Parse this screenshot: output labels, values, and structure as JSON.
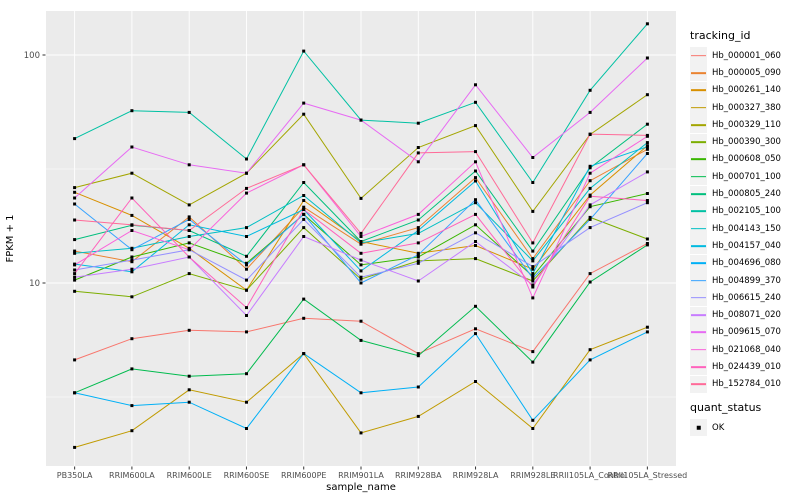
{
  "figure": {
    "panel_bg": "#EBEBEB",
    "grid_color": "#FFFFFF",
    "tick_text_color": "#4D4D4D",
    "tick_mark_color": "#333333",
    "point_color": "#000000"
  },
  "legend": {
    "tracking_title": "tracking_id",
    "quant_title": "quant_status",
    "quant_items": [
      {
        "label": "OK"
      }
    ]
  },
  "chart_data": {
    "type": "line",
    "title": "",
    "xlabel": "sample_name",
    "ylabel": "FPKM + 1",
    "y_scale": "log10",
    "ylim": [
      1.5,
      165
    ],
    "grid": true,
    "legend_position": "right",
    "point_shape": "black-square",
    "y_ticks": [
      {
        "label": "10",
        "value": 10
      },
      {
        "label": "100",
        "value": 100
      }
    ],
    "y_minor": [
      3.162,
      31.62
    ],
    "categories": [
      "PB350LA",
      "RRIM600LA",
      "RRIM600LE",
      "RRIM600SE",
      "RRIM600PE",
      "RRIM901LA",
      "RRIM928BA",
      "RRIM928LA",
      "RRIM928LE",
      "RRII105LA_Control",
      "RRII105LA_Stressed"
    ],
    "series": [
      {
        "name": "Hb_000001_060",
        "color": "#F8766D",
        "values": [
          4.6,
          5.7,
          6.2,
          6.1,
          7.0,
          6.8,
          4.9,
          6.3,
          5.0,
          11.0,
          14.9
        ]
      },
      {
        "name": "Hb_000005_090",
        "color": "#EA8331",
        "values": [
          13.8,
          12.4,
          19.5,
          11.5,
          21.5,
          14.8,
          17.5,
          29.0,
          12.8,
          28.1,
          38.6
        ]
      },
      {
        "name": "Hb_000261_140",
        "color": "#D89000",
        "values": [
          25.0,
          19.8,
          14.2,
          9.3,
          23.0,
          15.2,
          13.5,
          14.6,
          11.5,
          24.3,
          40.0
        ]
      },
      {
        "name": "Hb_000327_380",
        "color": "#C09B00",
        "values": [
          1.9,
          2.25,
          3.4,
          3.0,
          4.9,
          2.2,
          2.6,
          3.7,
          2.3,
          5.1,
          6.4
        ]
      },
      {
        "name": "Hb_000329_110",
        "color": "#A3A500",
        "values": [
          26.2,
          30.3,
          22.0,
          30.3,
          55.0,
          23.5,
          39.3,
          49.0,
          20.6,
          44.8,
          67.0
        ]
      },
      {
        "name": "Hb_000390_300",
        "color": "#7CAE00",
        "values": [
          9.2,
          8.7,
          11.0,
          9.3,
          17.5,
          10.4,
          12.5,
          12.8,
          10.2,
          19.4,
          15.6
        ]
      },
      {
        "name": "Hb_000608_050",
        "color": "#39B600",
        "values": [
          10.3,
          13.0,
          15.0,
          12.2,
          20.0,
          12.0,
          13.0,
          18.0,
          10.7,
          21.6,
          24.7
        ]
      },
      {
        "name": "Hb_000701_100",
        "color": "#00BB4E",
        "values": [
          3.3,
          4.2,
          3.9,
          4.0,
          8.5,
          5.6,
          4.8,
          7.9,
          4.5,
          10.1,
          14.7
        ]
      },
      {
        "name": "Hb_000805_240",
        "color": "#00BF7D",
        "values": [
          15.5,
          17.9,
          17.0,
          13.1,
          27.6,
          15.2,
          18.9,
          31.0,
          13.8,
          32.0,
          49.7
        ]
      },
      {
        "name": "Hb_002105_100",
        "color": "#00C1A3",
        "values": [
          43.0,
          57.0,
          56.0,
          35.0,
          104.0,
          51.8,
          50.2,
          62.0,
          27.6,
          70.0,
          137.0
        ]
      },
      {
        "name": "Hb_004143_150",
        "color": "#00BFC4",
        "values": [
          13.5,
          14.2,
          16.0,
          17.5,
          24.2,
          15.0,
          16.5,
          22.5,
          12.5,
          26.0,
          41.3
        ]
      },
      {
        "name": "Hb_004157_040",
        "color": "#00BAE0",
        "values": [
          12.1,
          11.2,
          18.0,
          16.0,
          21.0,
          11.3,
          17.0,
          28.0,
          11.0,
          32.5,
          39.6
        ]
      },
      {
        "name": "Hb_004696_080",
        "color": "#00B0F6",
        "values": [
          3.3,
          2.9,
          3.0,
          2.3,
          4.9,
          3.3,
          3.5,
          6.0,
          2.5,
          4.6,
          6.1
        ]
      },
      {
        "name": "Hb_004899_370",
        "color": "#35A2FF",
        "values": [
          22.2,
          14.0,
          19.0,
          12.0,
          20.0,
          10.0,
          13.3,
          23.2,
          10.5,
          19.0,
          37.0
        ]
      },
      {
        "name": "Hb_006615_240",
        "color": "#9590FF",
        "values": [
          11.4,
          12.6,
          14.0,
          10.3,
          19.0,
          10.6,
          12.2,
          16.6,
          11.8,
          17.5,
          22.5
        ]
      },
      {
        "name": "Hb_008071_020",
        "color": "#C77CFF",
        "values": [
          10.6,
          11.5,
          13.0,
          7.2,
          16.0,
          12.6,
          10.2,
          15.2,
          9.8,
          22.0,
          30.7
        ]
      },
      {
        "name": "Hb_009615_070",
        "color": "#E76BF3",
        "values": [
          23.6,
          39.5,
          33.0,
          30.3,
          61.5,
          51.8,
          34.0,
          74.0,
          35.5,
          56.0,
          97.0
        ]
      },
      {
        "name": "Hb_021068_040",
        "color": "#FA62DB",
        "values": [
          12.0,
          17.0,
          14.0,
          24.8,
          33.0,
          16.0,
          20.0,
          34.0,
          8.6,
          30.3,
          44.0
        ]
      },
      {
        "name": "Hb_024439_010",
        "color": "#FF62BC",
        "values": [
          11.0,
          23.6,
          13.0,
          7.8,
          21.0,
          13.5,
          15.0,
          20.0,
          9.6,
          24.0,
          23.0
        ]
      },
      {
        "name": "Hb_152784_010",
        "color": "#FF6A98",
        "values": [
          18.9,
          18.0,
          17.0,
          26.0,
          33.0,
          16.5,
          37.2,
          37.7,
          15.0,
          45.0,
          44.4
        ]
      }
    ]
  }
}
